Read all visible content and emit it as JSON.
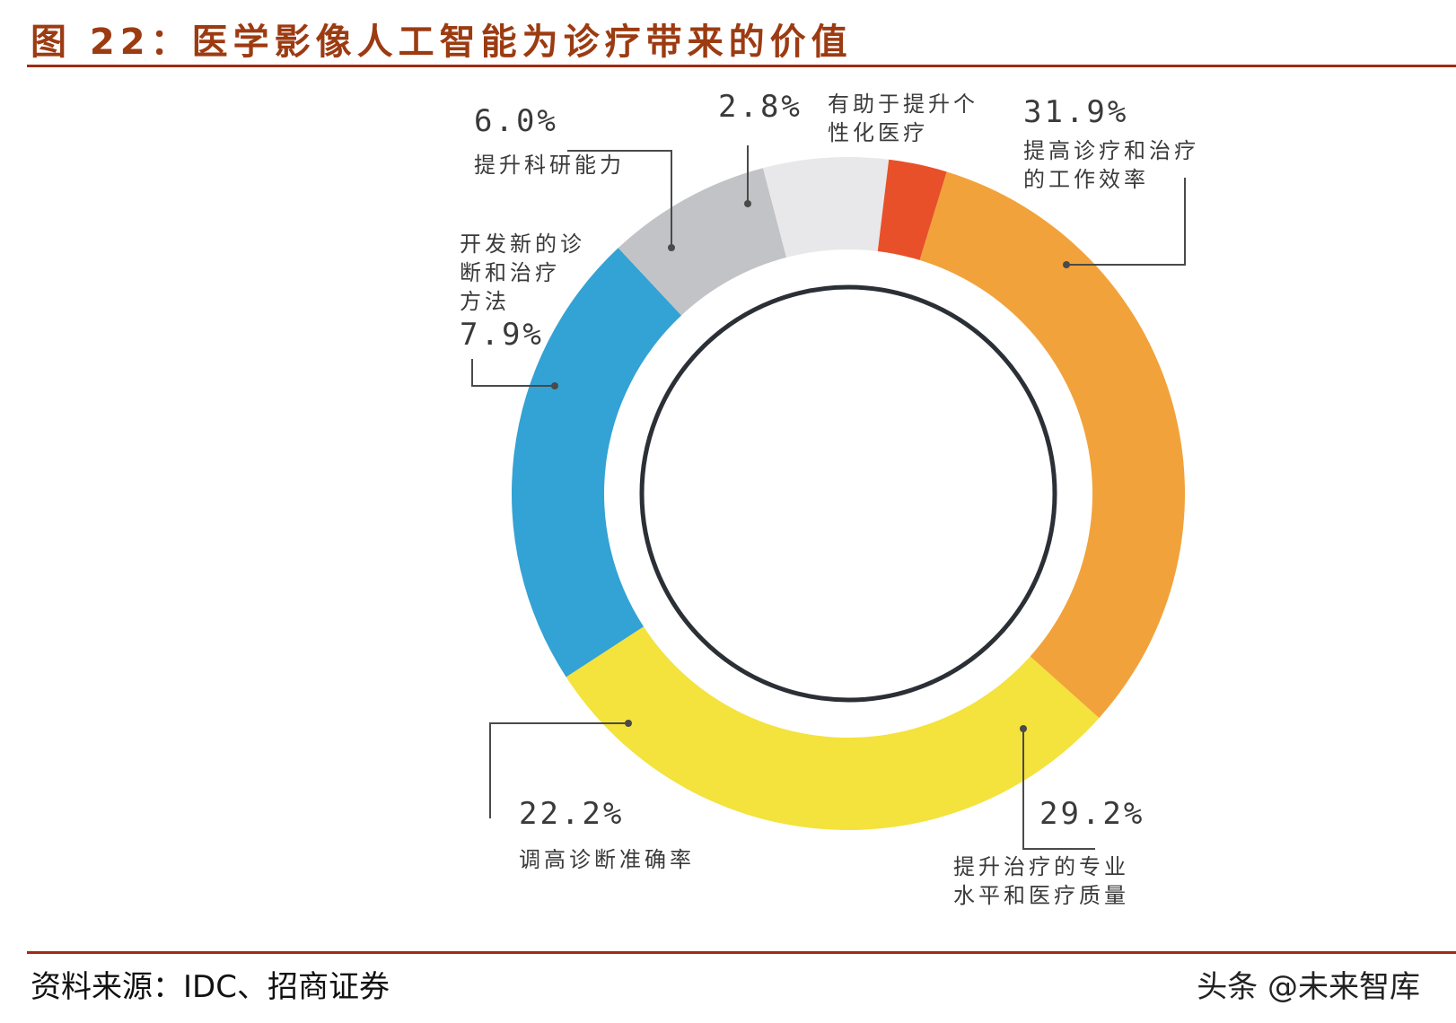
{
  "header": {
    "title": "图 22：医学影像人工智能为诊疗带来的价值"
  },
  "footer": {
    "source": "资料来源：IDC、招商证券",
    "watermark": "头条 @未来智库"
  },
  "chart_data": {
    "type": "pie",
    "title": "",
    "slices": [
      {
        "label_lines": [
          "提高诊疗和治疗",
          "的工作效率"
        ],
        "value": 31.9,
        "value_text": "31.9%",
        "color": "#f2a23a"
      },
      {
        "label_lines": [
          "提升治疗的专业",
          "水平和医疗质量"
        ],
        "value": 29.2,
        "value_text": "29.2%",
        "color": "#f4e23d"
      },
      {
        "label_lines": [
          "调高诊断准确率"
        ],
        "value": 22.2,
        "value_text": "22.2%",
        "color": "#33a2d4"
      },
      {
        "label_lines": [
          "开发新的诊",
          "断和治疗",
          "方法"
        ],
        "value": 7.9,
        "value_text": "7.9%",
        "color": "#c2c3c6"
      },
      {
        "label_lines": [
          "提升科研能力"
        ],
        "value": 6.0,
        "value_text": "6.0%",
        "color": "#e8e8ea"
      },
      {
        "label_lines": [
          "有助于提升个",
          "性化医疗"
        ],
        "value": 2.8,
        "value_text": "2.8%",
        "color": "#e8502a"
      }
    ]
  }
}
